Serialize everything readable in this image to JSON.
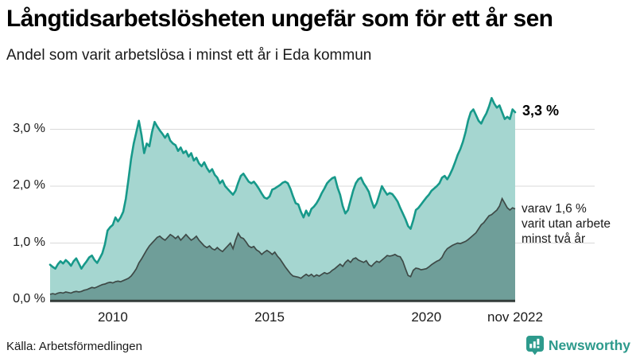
{
  "header": {
    "title": "Långtidsarbetslösheten ungefär som för ett år sen",
    "subtitle": "Andel som varit arbetslösa i minst ett år i Eda kommun"
  },
  "chart_data": {
    "type": "area",
    "unit": "%",
    "grid": true,
    "x_domain": [
      2008.0,
      2022.8333
    ],
    "ylim": [
      0,
      3.75
    ],
    "x_ticks": [
      {
        "label": "2010",
        "x": 2010
      },
      {
        "label": "2015",
        "x": 2015
      },
      {
        "label": "2020",
        "x": 2020
      },
      {
        "label": "nov 2022",
        "x": 2022.8333
      }
    ],
    "y_ticks": [
      {
        "label": "0,0 %",
        "value": 0
      },
      {
        "label": "1,0 %",
        "value": 1
      },
      {
        "label": "2,0 %",
        "value": 2
      },
      {
        "label": "3,0 %",
        "value": 3
      }
    ],
    "series": [
      {
        "id": "arbetslosa-minst-ett-ar",
        "line_color": "#17998a",
        "fill_color": "#a5d6d0",
        "end_label": "3,3 %",
        "values": [
          0.62,
          0.58,
          0.55,
          0.63,
          0.68,
          0.64,
          0.7,
          0.66,
          0.6,
          0.68,
          0.73,
          0.64,
          0.55,
          0.62,
          0.68,
          0.75,
          0.78,
          0.7,
          0.65,
          0.73,
          0.82,
          0.98,
          1.22,
          1.28,
          1.32,
          1.45,
          1.38,
          1.45,
          1.55,
          1.78,
          2.12,
          2.48,
          2.75,
          2.95,
          3.15,
          2.9,
          2.58,
          2.75,
          2.7,
          2.95,
          3.13,
          3.05,
          2.98,
          2.92,
          2.85,
          2.92,
          2.8,
          2.75,
          2.72,
          2.62,
          2.68,
          2.58,
          2.62,
          2.52,
          2.58,
          2.45,
          2.5,
          2.4,
          2.35,
          2.42,
          2.32,
          2.25,
          2.3,
          2.2,
          2.15,
          2.05,
          2.1,
          2.0,
          1.95,
          1.9,
          1.85,
          1.92,
          2.06,
          2.18,
          2.22,
          2.15,
          2.08,
          2.05,
          2.08,
          2.02,
          1.95,
          1.87,
          1.8,
          1.78,
          1.82,
          1.94,
          1.96,
          1.99,
          2.02,
          2.06,
          2.08,
          2.05,
          1.95,
          1.82,
          1.7,
          1.68,
          1.55,
          1.45,
          1.57,
          1.48,
          1.6,
          1.64,
          1.7,
          1.78,
          1.88,
          1.96,
          2.05,
          2.1,
          2.14,
          2.16,
          1.98,
          1.85,
          1.65,
          1.52,
          1.58,
          1.75,
          1.92,
          2.05,
          2.12,
          2.15,
          2.05,
          1.98,
          1.9,
          1.75,
          1.62,
          1.7,
          1.85,
          2.0,
          1.92,
          1.85,
          1.88,
          1.86,
          1.8,
          1.73,
          1.62,
          1.52,
          1.42,
          1.3,
          1.25,
          1.4,
          1.58,
          1.62,
          1.68,
          1.74,
          1.8,
          1.85,
          1.92,
          1.96,
          2.0,
          2.05,
          2.15,
          2.18,
          2.12,
          2.2,
          2.3,
          2.42,
          2.55,
          2.65,
          2.78,
          2.95,
          3.15,
          3.3,
          3.35,
          3.25,
          3.15,
          3.1,
          3.2,
          3.28,
          3.4,
          3.55,
          3.45,
          3.38,
          3.42,
          3.3,
          3.18,
          3.22,
          3.18,
          3.35,
          3.3
        ]
      },
      {
        "id": "arbetslosa-minst-tva-ar",
        "line_color": "#3e4a47",
        "fill_color": "#6f9e99",
        "annotation_lines": [
          "varav 1,6 %",
          "varit utan arbete",
          "minst två år"
        ],
        "values": [
          0.1,
          0.11,
          0.1,
          0.12,
          0.13,
          0.12,
          0.14,
          0.13,
          0.12,
          0.14,
          0.15,
          0.14,
          0.15,
          0.17,
          0.18,
          0.2,
          0.22,
          0.21,
          0.23,
          0.25,
          0.27,
          0.28,
          0.3,
          0.31,
          0.3,
          0.32,
          0.33,
          0.32,
          0.34,
          0.36,
          0.38,
          0.42,
          0.48,
          0.55,
          0.65,
          0.72,
          0.8,
          0.88,
          0.95,
          1.0,
          1.05,
          1.1,
          1.12,
          1.08,
          1.05,
          1.1,
          1.15,
          1.12,
          1.08,
          1.12,
          1.05,
          1.1,
          1.15,
          1.1,
          1.05,
          1.08,
          1.12,
          1.05,
          1.0,
          0.95,
          0.92,
          0.95,
          0.9,
          0.88,
          0.92,
          0.88,
          0.85,
          0.9,
          0.95,
          1.0,
          0.9,
          1.05,
          1.17,
          1.1,
          1.08,
          1.02,
          0.95,
          0.92,
          0.94,
          0.88,
          0.85,
          0.8,
          0.84,
          0.87,
          0.84,
          0.8,
          0.84,
          0.77,
          0.72,
          0.65,
          0.58,
          0.52,
          0.46,
          0.42,
          0.41,
          0.4,
          0.38,
          0.42,
          0.45,
          0.42,
          0.45,
          0.41,
          0.44,
          0.42,
          0.45,
          0.48,
          0.46,
          0.48,
          0.52,
          0.55,
          0.59,
          0.63,
          0.59,
          0.66,
          0.7,
          0.66,
          0.72,
          0.74,
          0.7,
          0.68,
          0.66,
          0.69,
          0.62,
          0.59,
          0.64,
          0.68,
          0.66,
          0.7,
          0.74,
          0.78,
          0.77,
          0.78,
          0.8,
          0.77,
          0.76,
          0.68,
          0.55,
          0.43,
          0.41,
          0.52,
          0.56,
          0.55,
          0.53,
          0.54,
          0.55,
          0.58,
          0.62,
          0.65,
          0.68,
          0.7,
          0.75,
          0.84,
          0.9,
          0.93,
          0.96,
          0.98,
          1.0,
          0.99,
          1.01,
          1.03,
          1.06,
          1.1,
          1.14,
          1.18,
          1.25,
          1.32,
          1.36,
          1.42,
          1.48,
          1.5,
          1.54,
          1.58,
          1.65,
          1.78,
          1.7,
          1.62,
          1.58,
          1.62,
          1.6
        ]
      }
    ]
  },
  "footer": {
    "source": "Källa: Arbetsförmedlingen",
    "brand": "Newsworthy"
  },
  "colors": {
    "accent_teal": "#17998a",
    "fill_light": "#a5d6d0",
    "fill_dark": "#6f9e99",
    "line_dark": "#3e4a47",
    "axis": "#333c3a",
    "gridline": "#d9d9d9",
    "brand": "#2d9a8c"
  }
}
